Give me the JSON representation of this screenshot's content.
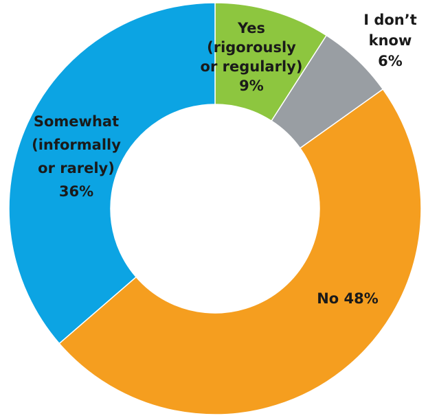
{
  "chart_data": {
    "type": "pie",
    "variant": "donut",
    "title": "",
    "slices": [
      {
        "label_lines": [
          "Yes",
          "(rigorously",
          "or regularly)",
          "9%"
        ],
        "value": 9,
        "color": "#8dc63f"
      },
      {
        "label_lines": [
          "I don’t",
          "know",
          "6%"
        ],
        "value": 6,
        "color": "#999ea3"
      },
      {
        "label_lines": [
          "No 48%"
        ],
        "value": 48,
        "color": "#f59e1f"
      },
      {
        "label_lines": [
          "Somewhat",
          "(informally",
          "or rarely)",
          "36%"
        ],
        "value": 36,
        "color": "#0ca4e3"
      }
    ]
  }
}
